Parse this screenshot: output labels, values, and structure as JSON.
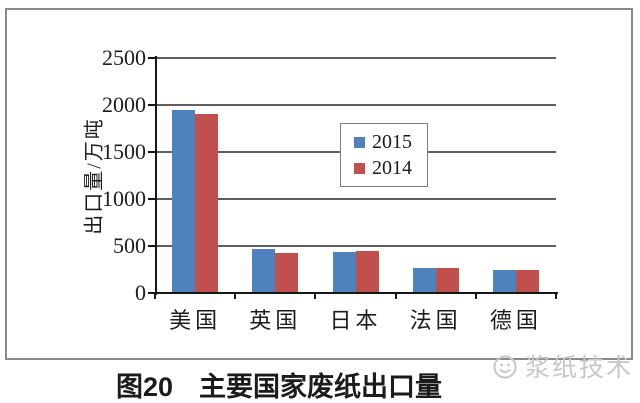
{
  "page": {
    "background": "#ffffff",
    "border_color": "#8a8a8a"
  },
  "chart_data": {
    "type": "bar",
    "title": "图20 主要国家废纸出口量",
    "caption": {
      "label": "图20",
      "title": "主要国家废纸出口量"
    },
    "xlabel": "",
    "ylabel": "出口量/万吨",
    "categories": [
      "美国",
      "英国",
      "日本",
      "法国",
      "德国"
    ],
    "series": [
      {
        "name": "2015",
        "color": "#4F81BD",
        "values": [
          1950,
          470,
          440,
          270,
          240
        ]
      },
      {
        "name": "2014",
        "color": "#C0504D",
        "values": [
          1900,
          430,
          445,
          270,
          240
        ]
      }
    ],
    "ylim": [
      0,
      2500
    ],
    "yticks": [
      0,
      500,
      1000,
      1500,
      2000,
      2500
    ],
    "grid": true,
    "gridline_color": "#5f5f5f",
    "axis_color": "#161616",
    "legend_position": "inside-center",
    "legend_entries": [
      "2015",
      "2014"
    ]
  },
  "watermark": {
    "text": "浆纸技术",
    "logo": "smiley-face-logo",
    "color": "#c7c7c7"
  }
}
